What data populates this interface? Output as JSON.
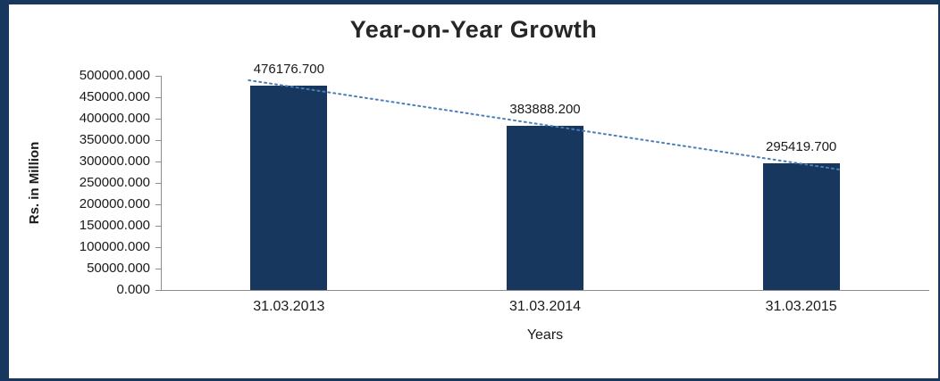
{
  "frame": {
    "border_color": "#17375E",
    "background": "#FFFFFF"
  },
  "chart_data": {
    "type": "bar",
    "title": "Year-on-Year Growth",
    "categories": [
      "31.03.2013",
      "31.03.2014",
      "31.03.2015"
    ],
    "values": [
      476176.7,
      383888.2,
      295419.7
    ],
    "value_labels": [
      "476176.700",
      "383888.200",
      "295419.700"
    ],
    "xlabel": "Years",
    "ylabel": "Rs. in Million",
    "ylim": [
      0,
      500000
    ],
    "ytick_step": 50000,
    "ytick_labels": [
      "0.000",
      "50000.000",
      "100000.000",
      "150000.000",
      "200000.000",
      "250000.000",
      "300000.000",
      "350000.000",
      "400000.000",
      "450000.000",
      "500000.000"
    ],
    "grid": false,
    "legend": false,
    "bar_color": "#17375E",
    "axis_color": "#8C8C8C",
    "trendline": {
      "type": "linear",
      "style": "dotted",
      "color": "#4A7EBB"
    }
  }
}
